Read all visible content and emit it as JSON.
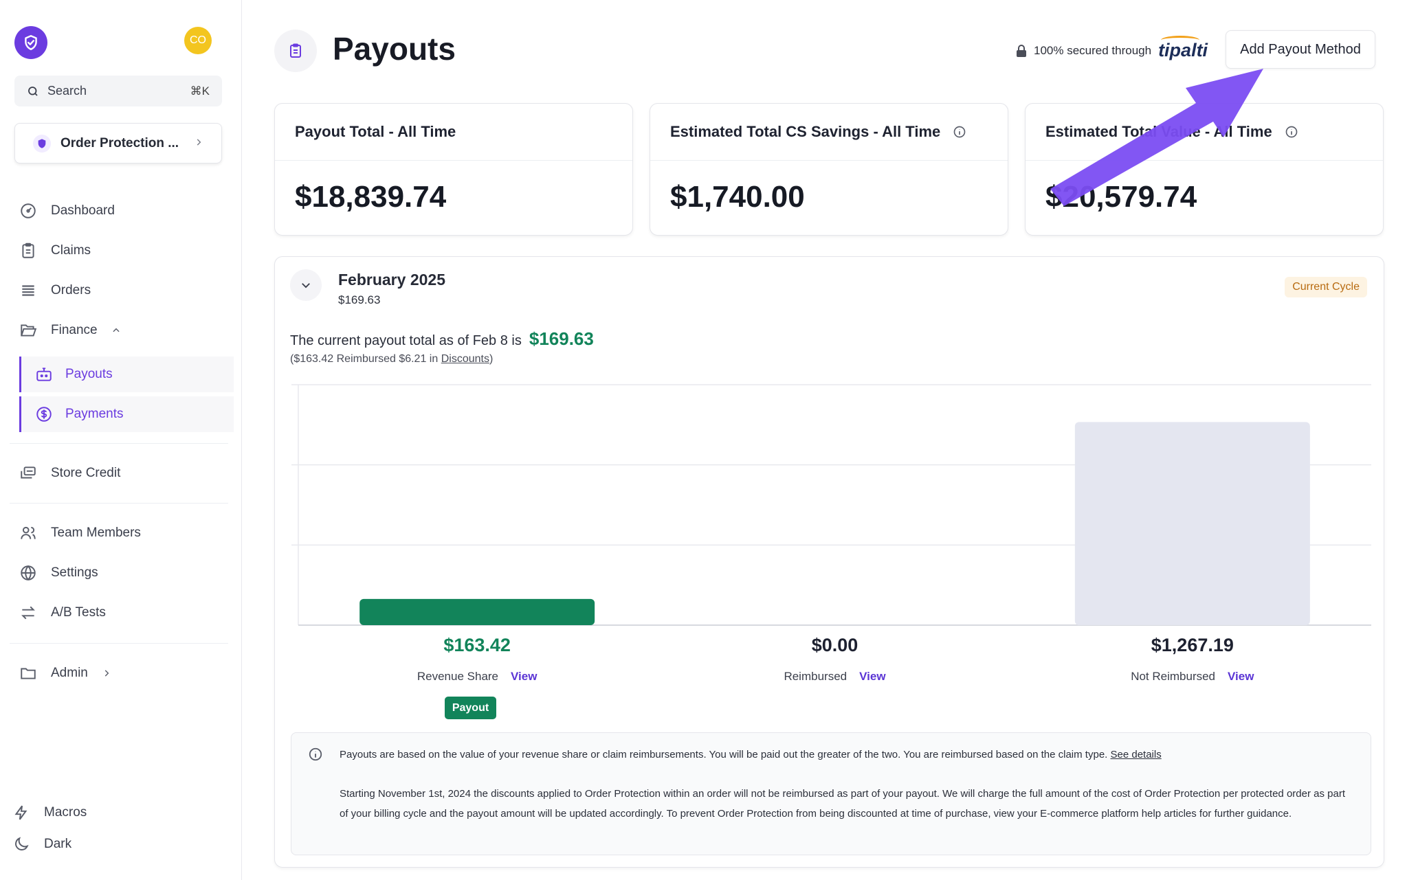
{
  "sidebar": {
    "avatar_initials": "CO",
    "search": {
      "placeholder": "Search",
      "shortcut": "⌘K"
    },
    "store_switcher": "Order Protection ...",
    "nav": {
      "dashboard": "Dashboard",
      "claims": "Claims",
      "orders": "Orders",
      "finance": "Finance",
      "payouts": "Payouts",
      "payments": "Payments",
      "store_credit": "Store Credit",
      "team_members": "Team Members",
      "settings": "Settings",
      "ab_tests": "A/B Tests",
      "admin": "Admin",
      "macros": "Macros",
      "dark": "Dark"
    }
  },
  "header": {
    "title": "Payouts",
    "secured_text": "100% secured through",
    "secured_brand": "tipalti",
    "add_button": "Add Payout Method"
  },
  "cards": [
    {
      "title": "Payout Total - All Time",
      "value": "$18,839.74"
    },
    {
      "title": "Estimated Total CS Savings - All Time",
      "value": "$1,740.00"
    },
    {
      "title": "Estimated Total Value - All Time",
      "value": "$20,579.74"
    }
  ],
  "cycle": {
    "title": "February 2025",
    "subtitle": "$169.63",
    "badge": "Current Cycle",
    "current_prefix": "The current payout total as of Feb 8 is",
    "current_amount": "$169.63",
    "breakdown_prefix": "($163.42 Reimbursed $6.21 in",
    "breakdown_link": "Discounts",
    "breakdown_suffix": ")"
  },
  "chart_data": {
    "type": "bar",
    "categories": [
      "Revenue Share",
      "Reimbursed",
      "Not Reimbursed"
    ],
    "values": [
      163.42,
      0.0,
      1267.19
    ],
    "value_labels": [
      "$163.42",
      "$0.00",
      "$1,267.19"
    ],
    "colors": [
      "#12845a",
      "#12845a",
      "#e4e6f0"
    ],
    "label_colors": [
      "#12845a",
      "#1d2130",
      "#1d2130"
    ],
    "view_label": "View",
    "ylim": [
      0,
      1500
    ],
    "grid": true
  },
  "payout_tag": "Payout",
  "notice": {
    "line1": "Payouts are based on the value of your revenue share or claim reimbursements. You will be paid out the greater of the two. You are reimbursed based on the claim type.",
    "line1_link": "See details",
    "line2": "Starting November 1st, 2024 the discounts applied to Order Protection within an order will not be reimbursed as part of your payout. We will charge the full amount of the cost of Order Protection per protected order as part of your billing cycle and the payout amount will be updated accordingly. To prevent Order Protection from being discounted at time of purchase, view your E-commerce platform help articles for further guidance."
  },
  "colors": {
    "accent": "#6b3ce0",
    "success": "#12845a",
    "annotation_arrow": "#7b4df2"
  }
}
